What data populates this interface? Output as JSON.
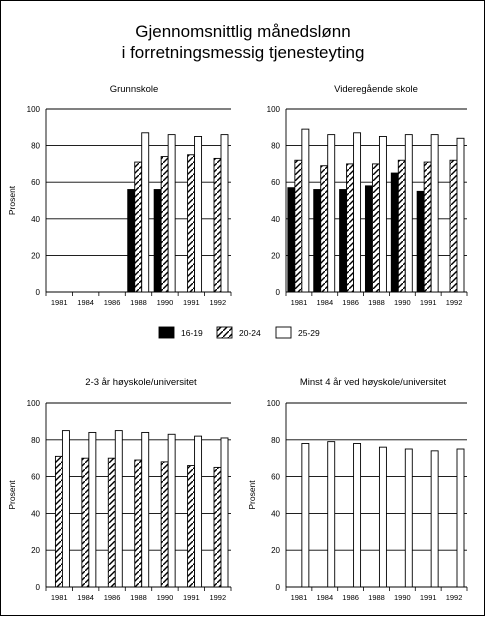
{
  "page": {
    "title_line1": "Gjennomsnittlig månedslønn",
    "title_line2": "i forretningsmessig tjenesteyting"
  },
  "legend": [
    {
      "name": "16-19",
      "pattern": "solid-black"
    },
    {
      "name": "20-24",
      "pattern": "hatched"
    },
    {
      "name": "25-29",
      "pattern": "white"
    }
  ],
  "chart_data": [
    {
      "type": "bar",
      "title": "Grunnskole",
      "ylabel": "Prosent",
      "ylim": [
        0,
        100
      ],
      "yticks": [
        0,
        20,
        40,
        60,
        80,
        100
      ],
      "grid": true,
      "categories": [
        "1981",
        "1984",
        "1986",
        "1988",
        "1990",
        "1991",
        "1992"
      ],
      "series": [
        {
          "name": "16-19",
          "values": [
            null,
            null,
            null,
            56,
            56,
            null,
            null
          ]
        },
        {
          "name": "20-24",
          "values": [
            null,
            null,
            null,
            71,
            74,
            75,
            73
          ]
        },
        {
          "name": "25-29",
          "values": [
            null,
            null,
            null,
            87,
            86,
            85,
            86
          ]
        }
      ]
    },
    {
      "type": "bar",
      "title": "Videregående skole",
      "ylabel": "",
      "ylim": [
        0,
        100
      ],
      "yticks": [
        0,
        20,
        40,
        60,
        80,
        100
      ],
      "grid": true,
      "categories": [
        "1981",
        "1984",
        "1986",
        "1988",
        "1990",
        "1991",
        "1992"
      ],
      "series": [
        {
          "name": "16-19",
          "values": [
            57,
            56,
            56,
            58,
            65,
            55,
            null
          ]
        },
        {
          "name": "20-24",
          "values": [
            72,
            69,
            70,
            70,
            72,
            71,
            72
          ]
        },
        {
          "name": "25-29",
          "values": [
            89,
            86,
            87,
            85,
            86,
            86,
            84
          ]
        }
      ]
    },
    {
      "type": "bar",
      "title": "2-3 år høyskole/universitet",
      "ylabel": "Prosent",
      "ylim": [
        0,
        100
      ],
      "yticks": [
        0,
        20,
        40,
        60,
        80,
        100
      ],
      "grid": true,
      "categories": [
        "1981",
        "1984",
        "1986",
        "1988",
        "1990",
        "1991",
        "1992"
      ],
      "series": [
        {
          "name": "20-24",
          "values": [
            71,
            70,
            70,
            69,
            68,
            66,
            65
          ]
        },
        {
          "name": "25-29",
          "values": [
            85,
            84,
            85,
            84,
            83,
            82,
            81
          ]
        }
      ]
    },
    {
      "type": "bar",
      "title": "Minst 4 år ved høyskole/universitet",
      "ylabel": "Prosent",
      "ylim": [
        0,
        100
      ],
      "yticks": [
        0,
        20,
        40,
        60,
        80,
        100
      ],
      "grid": true,
      "categories": [
        "1981",
        "1984",
        "1986",
        "1988",
        "1990",
        "1991",
        "1992"
      ],
      "series": [
        {
          "name": "25-29",
          "values": [
            78,
            79,
            78,
            76,
            75,
            74,
            75
          ]
        }
      ]
    }
  ]
}
